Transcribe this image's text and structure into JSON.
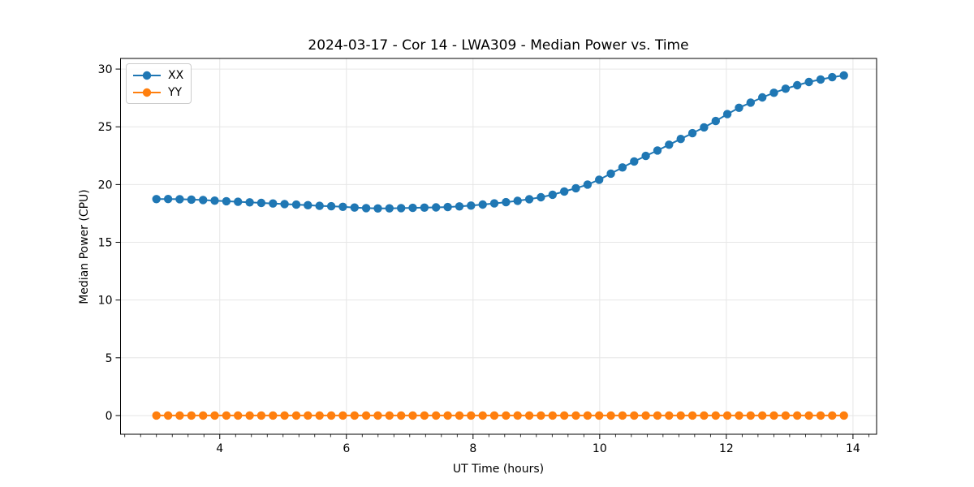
{
  "page": {
    "background": "#ffffff"
  },
  "colors": {
    "grid": "#e6e6e6",
    "spine": "#000000",
    "tick": "#000000",
    "text": "#000000",
    "legend_border": "#cccccc"
  },
  "chart_data": {
    "type": "line",
    "title": "2024-03-17 - Cor 14 - LWA309 - Median Power vs. Time",
    "xlabel": "UT Time (hours)",
    "ylabel": "Median Power (CPU)",
    "xlim": [
      2.433,
      14.373
    ],
    "ylim": [
      -1.62,
      30.92
    ],
    "xticks": [
      4,
      6,
      8,
      10,
      12,
      14
    ],
    "x_minor_step": 0.25,
    "yticks": [
      0,
      5,
      10,
      15,
      20,
      25,
      30
    ],
    "grid": true,
    "legend_position": "upper-left",
    "marker": "circle",
    "marker_radius": 5.2,
    "line_width": 2,
    "x": [
      3.0,
      3.184,
      3.368,
      3.552,
      3.736,
      3.92,
      4.104,
      4.288,
      4.472,
      4.656,
      4.84,
      5.024,
      5.208,
      5.392,
      5.576,
      5.76,
      5.944,
      6.128,
      6.312,
      6.496,
      6.68,
      6.864,
      7.048,
      7.232,
      7.416,
      7.6,
      7.784,
      7.968,
      8.152,
      8.336,
      8.52,
      8.704,
      8.888,
      9.072,
      9.256,
      9.44,
      9.624,
      9.808,
      9.992,
      10.176,
      10.36,
      10.544,
      10.728,
      10.912,
      11.096,
      11.28,
      11.464,
      11.648,
      11.832,
      12.016,
      12.2,
      12.384,
      12.568,
      12.752,
      12.936,
      13.12,
      13.304,
      13.488,
      13.672,
      13.856
    ],
    "series": [
      {
        "name": "XX",
        "color": "#1f77b4",
        "values": [
          18.74,
          18.75,
          18.73,
          18.7,
          18.66,
          18.61,
          18.56,
          18.51,
          18.46,
          18.41,
          18.36,
          18.31,
          18.26,
          18.21,
          18.16,
          18.12,
          18.07,
          18.01,
          17.96,
          17.93,
          17.94,
          17.96,
          17.98,
          18.0,
          18.02,
          18.05,
          18.11,
          18.18,
          18.27,
          18.37,
          18.47,
          18.59,
          18.73,
          18.9,
          19.12,
          19.4,
          19.68,
          20.0,
          20.42,
          20.95,
          21.48,
          22.0,
          22.48,
          22.95,
          23.45,
          23.95,
          24.45,
          24.95,
          25.5,
          26.1,
          26.65,
          27.1,
          27.55,
          27.95,
          28.3,
          28.6,
          28.88,
          29.1,
          29.3,
          29.45
        ]
      },
      {
        "name": "YY",
        "color": "#ff7f0e",
        "values": [
          0.0,
          0.0,
          0.0,
          0.0,
          0.0,
          0.0,
          0.0,
          0.0,
          0.0,
          0.0,
          0.0,
          0.0,
          0.0,
          0.0,
          0.0,
          0.0,
          0.0,
          0.0,
          0.0,
          0.0,
          0.0,
          0.0,
          0.0,
          0.0,
          0.0,
          0.0,
          0.0,
          0.0,
          0.0,
          0.0,
          0.0,
          0.0,
          0.0,
          0.0,
          0.0,
          0.0,
          0.0,
          0.0,
          0.0,
          0.0,
          0.0,
          0.0,
          0.0,
          0.0,
          0.0,
          0.0,
          0.0,
          0.0,
          0.0,
          0.0,
          0.0,
          0.0,
          0.0,
          0.0,
          0.0,
          0.0,
          0.0,
          0.0,
          0.0,
          0.0
        ]
      }
    ]
  }
}
